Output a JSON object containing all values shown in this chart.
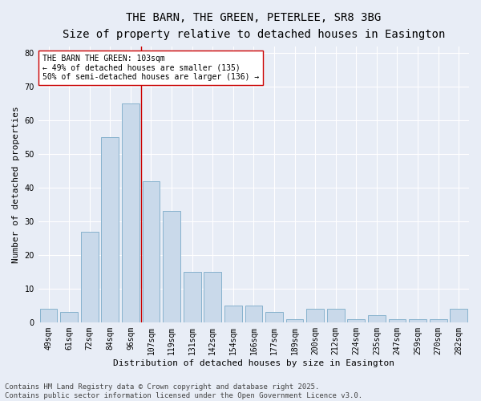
{
  "title": "THE BARN, THE GREEN, PETERLEE, SR8 3BG",
  "subtitle": "Size of property relative to detached houses in Easington",
  "xlabel": "Distribution of detached houses by size in Easington",
  "ylabel": "Number of detached properties",
  "categories": [
    "49sqm",
    "61sqm",
    "72sqm",
    "84sqm",
    "96sqm",
    "107sqm",
    "119sqm",
    "131sqm",
    "142sqm",
    "154sqm",
    "166sqm",
    "177sqm",
    "189sqm",
    "200sqm",
    "212sqm",
    "224sqm",
    "235sqm",
    "247sqm",
    "259sqm",
    "270sqm",
    "282sqm"
  ],
  "values": [
    4,
    3,
    27,
    55,
    65,
    42,
    33,
    15,
    15,
    5,
    5,
    3,
    1,
    4,
    4,
    1,
    2,
    1,
    1,
    1,
    4
  ],
  "bar_color": "#c9d9ea",
  "bar_edge_color": "#7aaac8",
  "background_color": "#e8edf6",
  "grid_color": "#ffffff",
  "vline_color": "#cc0000",
  "vline_pos": 4.5,
  "annotation_text": "THE BARN THE GREEN: 103sqm\n← 49% of detached houses are smaller (135)\n50% of semi-detached houses are larger (136) →",
  "annotation_box_facecolor": "#ffffff",
  "annotation_box_edgecolor": "#cc0000",
  "ylim": [
    0,
    82
  ],
  "yticks": [
    0,
    10,
    20,
    30,
    40,
    50,
    60,
    70,
    80
  ],
  "footer_text": "Contains HM Land Registry data © Crown copyright and database right 2025.\nContains public sector information licensed under the Open Government Licence v3.0.",
  "title_fontsize": 10,
  "subtitle_fontsize": 9,
  "axis_label_fontsize": 8,
  "tick_fontsize": 7,
  "annotation_fontsize": 7,
  "footer_fontsize": 6.5
}
